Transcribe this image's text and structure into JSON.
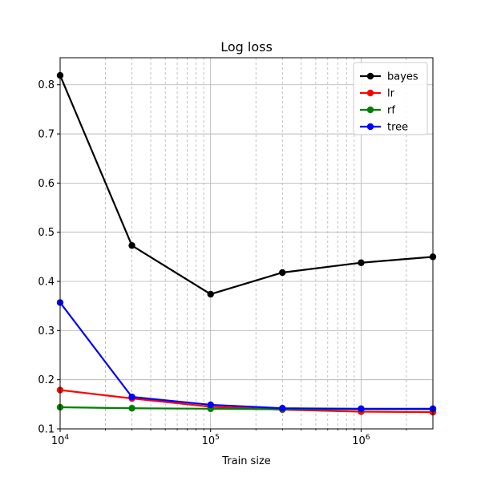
{
  "chart_data": {
    "type": "line",
    "title": "Log loss",
    "xlabel": "Train size",
    "ylabel": "",
    "xscale": "log",
    "xlim": [
      10000,
      3000000
    ],
    "ylim": [
      0.1,
      0.855
    ],
    "x": [
      10000,
      30000,
      100000,
      300000,
      1000000,
      3000000
    ],
    "yticks": [
      0.1,
      0.2,
      0.3,
      0.4,
      0.5,
      0.6,
      0.7,
      0.8
    ],
    "ytick_labels": [
      "0.1",
      "0.2",
      "0.3",
      "0.4",
      "0.5",
      "0.6",
      "0.7",
      "0.8"
    ],
    "xticks": [
      10000,
      100000,
      1000000
    ],
    "xtick_labels": [
      {
        "base": "10",
        "exp": "4"
      },
      {
        "base": "10",
        "exp": "5"
      },
      {
        "base": "10",
        "exp": "6"
      }
    ],
    "grid": {
      "major": "solid",
      "minor_x": "dashed"
    },
    "legend_position": "top-right",
    "series": [
      {
        "name": "bayes",
        "color": "#000000",
        "values": [
          0.819,
          0.473,
          0.374,
          0.418,
          0.438,
          0.45
        ]
      },
      {
        "name": "lr",
        "color": "#ff0000",
        "values": [
          0.179,
          0.162,
          0.145,
          0.139,
          0.135,
          0.134
        ]
      },
      {
        "name": "rf",
        "color": "#008000",
        "values": [
          0.144,
          0.142,
          0.141,
          0.14,
          0.14,
          0.14
        ]
      },
      {
        "name": "tree",
        "color": "#0000ff",
        "values": [
          0.357,
          0.165,
          0.149,
          0.142,
          0.141,
          0.141
        ]
      }
    ]
  }
}
